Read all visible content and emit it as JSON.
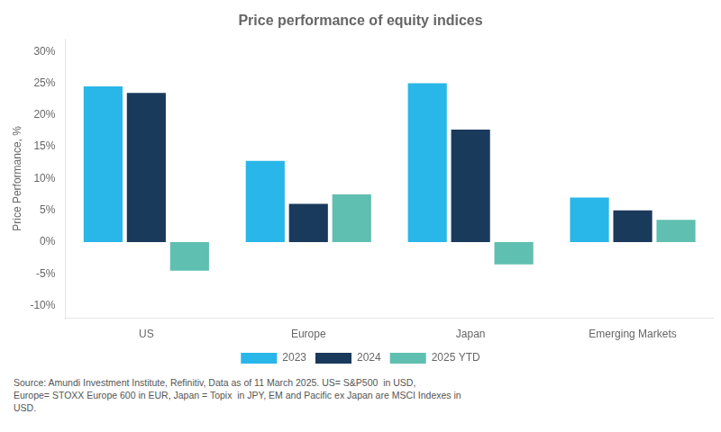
{
  "chart_data": {
    "type": "bar",
    "title": "Price performance of equity indices",
    "y_label": "Price Performance, %",
    "categories": [
      "US",
      "Europe",
      "Japan",
      "Emerging Markets"
    ],
    "series": [
      {
        "name": "2023",
        "color": "#29b6e8",
        "values": [
          24.5,
          12.8,
          25.0,
          7.0
        ]
      },
      {
        "name": "2024",
        "color": "#1a3a5c",
        "values": [
          23.5,
          6.0,
          17.7,
          5.0
        ]
      },
      {
        "name": "2025 YTD",
        "color": "#5fbfb0",
        "values": [
          -4.5,
          7.5,
          -3.5,
          3.5
        ]
      }
    ],
    "ylim": [
      -12,
      32
    ],
    "yticks": [
      {
        "value": -10,
        "label": "-10%"
      },
      {
        "value": -5,
        "label": "-5%"
      },
      {
        "value": 0,
        "label": "0%"
      },
      {
        "value": 5,
        "label": "5%"
      },
      {
        "value": 10,
        "label": "10%"
      },
      {
        "value": 15,
        "label": "15%"
      },
      {
        "value": 20,
        "label": "20%"
      },
      {
        "value": 25,
        "label": "25%"
      },
      {
        "value": 30,
        "label": "30%"
      }
    ],
    "grid": false,
    "legend": "bottom",
    "source": "Source: Amundi Investment Institute, Refinitiv, Data as of 11 March 2025. US= S&P500  in USD,\nEurope= STOXX Europe 600 in EUR, Japan = Topix  in JPY, EM and Pacific ex Japan are MSCI Indexes in\nUSD."
  }
}
